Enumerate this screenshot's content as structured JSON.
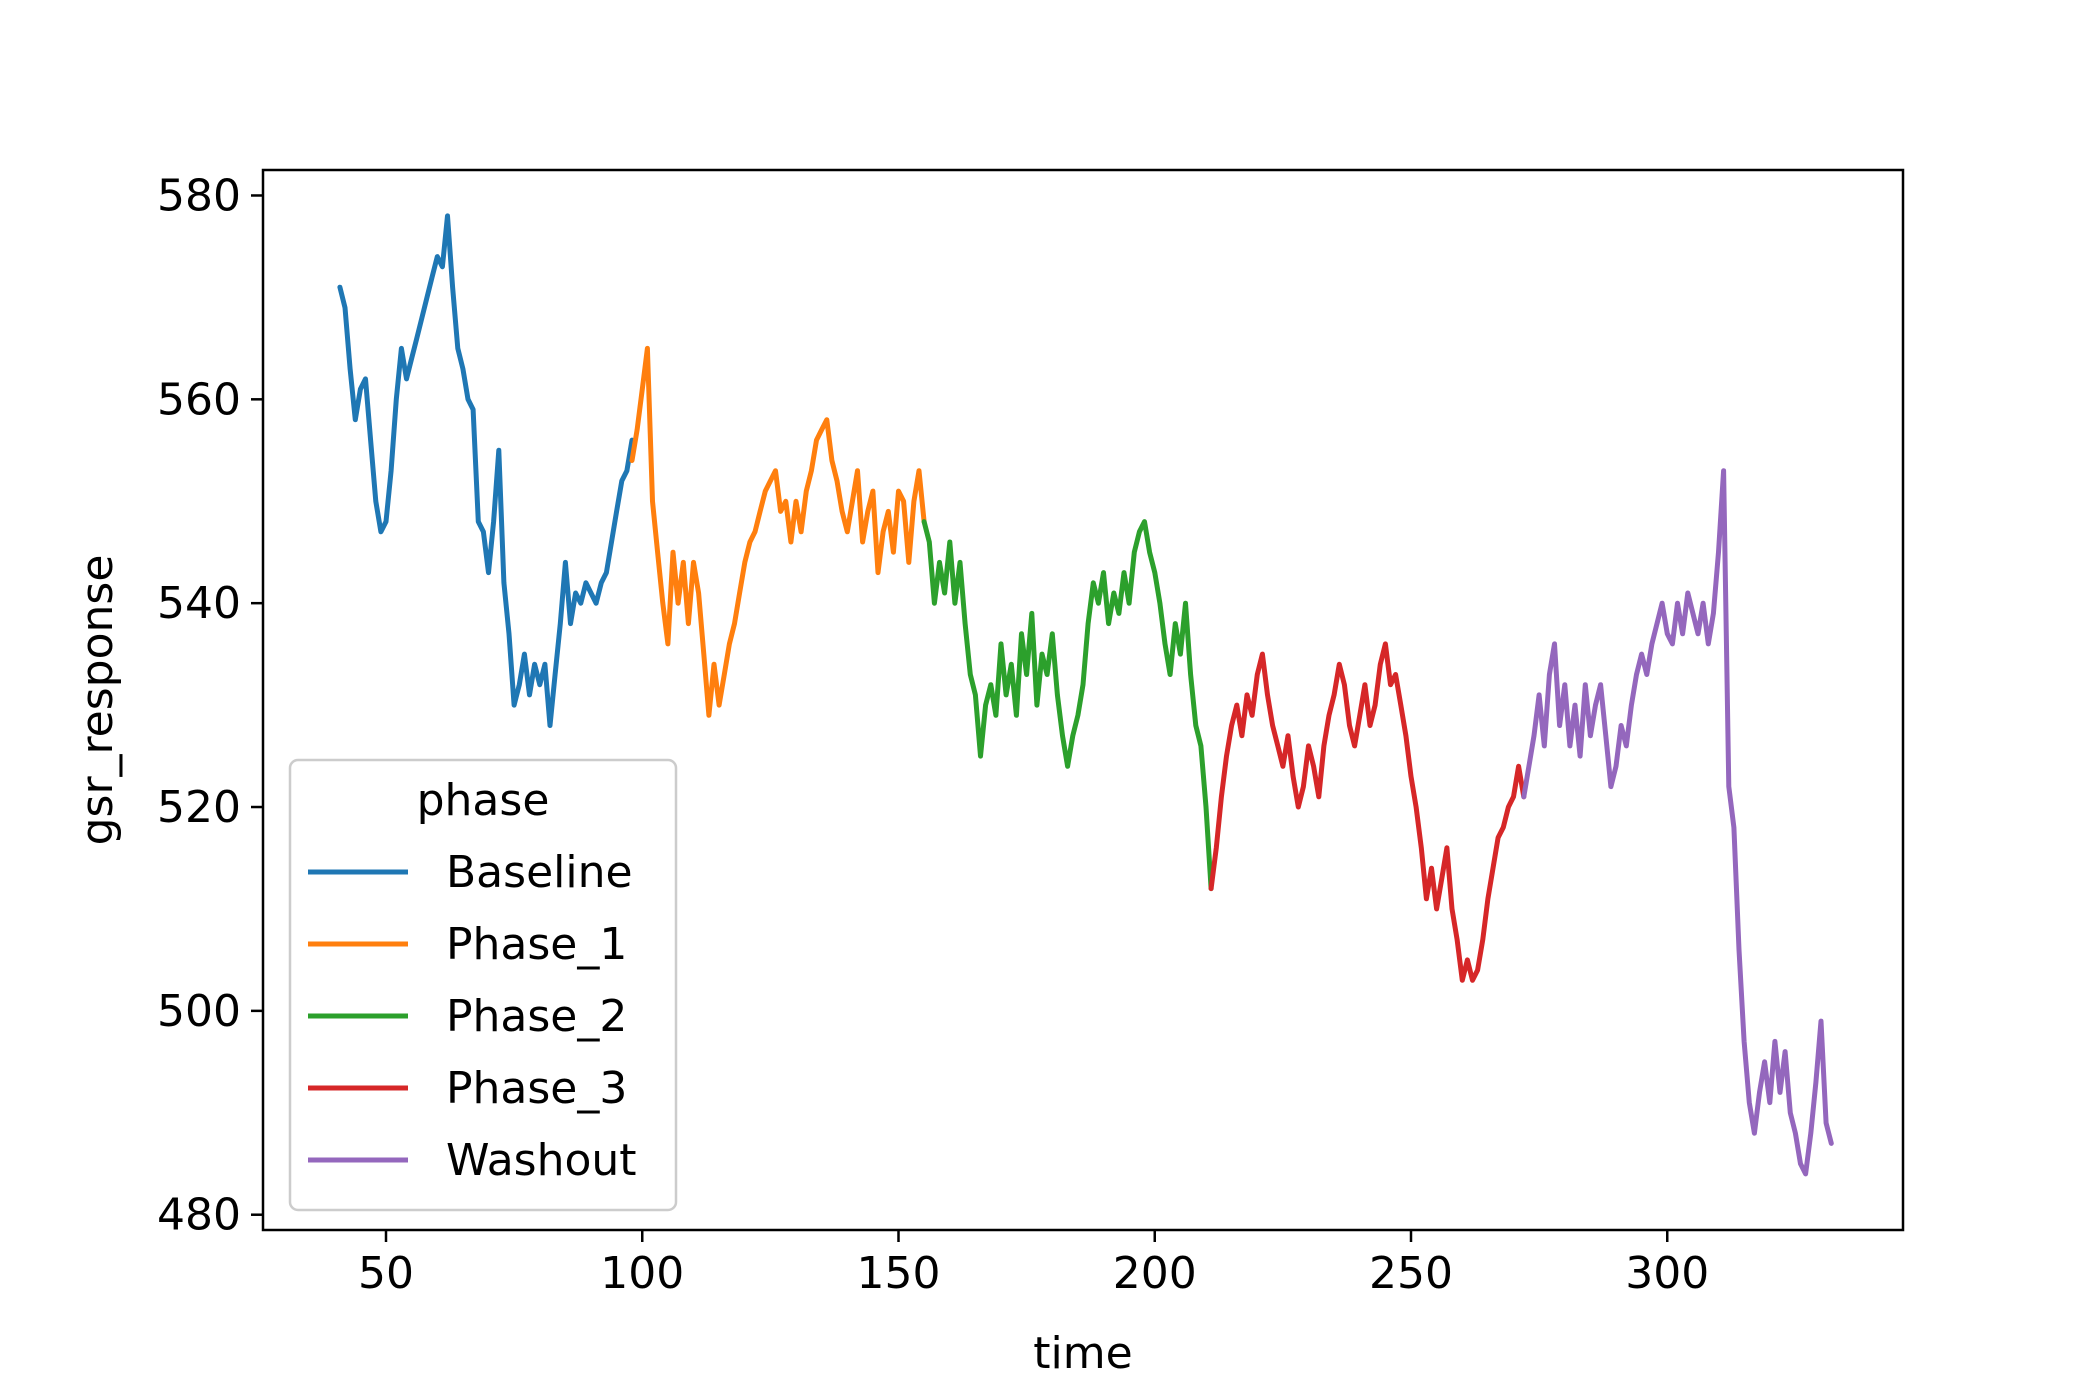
{
  "chart_data": {
    "type": "line",
    "title": "",
    "xlabel": "time",
    "ylabel": "gsr_response",
    "xlim": [
      26,
      346
    ],
    "ylim": [
      478.5,
      582.5
    ],
    "xticks": [
      50,
      100,
      150,
      200,
      250,
      300
    ],
    "yticks": [
      480,
      500,
      520,
      540,
      560,
      580
    ],
    "grid": false,
    "legend": {
      "title": "phase",
      "placement": "lower-left"
    },
    "series": [
      {
        "name": "Baseline",
        "color": "#1f77b4",
        "points": [
          [
            41,
            571
          ],
          [
            42,
            569
          ],
          [
            43,
            563
          ],
          [
            44,
            558
          ],
          [
            45,
            561
          ],
          [
            46,
            562
          ],
          [
            47,
            556
          ],
          [
            48,
            550
          ],
          [
            49,
            547
          ],
          [
            50,
            548
          ],
          [
            51,
            553
          ],
          [
            52,
            560
          ],
          [
            53,
            565
          ],
          [
            54,
            562
          ],
          [
            55,
            564
          ],
          [
            56,
            566
          ],
          [
            57,
            568
          ],
          [
            58,
            570
          ],
          [
            59,
            572
          ],
          [
            60,
            574
          ],
          [
            61,
            573
          ],
          [
            62,
            578
          ],
          [
            63,
            571
          ],
          [
            64,
            565
          ],
          [
            65,
            563
          ],
          [
            66,
            560
          ],
          [
            67,
            559
          ],
          [
            68,
            548
          ],
          [
            69,
            547
          ],
          [
            70,
            543
          ],
          [
            71,
            548
          ],
          [
            72,
            555
          ],
          [
            73,
            542
          ],
          [
            74,
            537
          ],
          [
            75,
            530
          ],
          [
            76,
            532
          ],
          [
            77,
            535
          ],
          [
            78,
            531
          ],
          [
            79,
            534
          ],
          [
            80,
            532
          ],
          [
            81,
            534
          ],
          [
            82,
            528
          ],
          [
            83,
            533
          ],
          [
            84,
            538
          ],
          [
            85,
            544
          ],
          [
            86,
            538
          ],
          [
            87,
            541
          ],
          [
            88,
            540
          ],
          [
            89,
            542
          ],
          [
            90,
            541
          ],
          [
            91,
            540
          ],
          [
            92,
            542
          ],
          [
            93,
            543
          ],
          [
            94,
            546
          ],
          [
            95,
            549
          ],
          [
            96,
            552
          ],
          [
            97,
            553
          ],
          [
            98,
            556
          ]
        ]
      },
      {
        "name": "Phase_1",
        "color": "#ff7f0e",
        "points": [
          [
            98,
            554
          ],
          [
            99,
            557
          ],
          [
            100,
            561
          ],
          [
            101,
            565
          ],
          [
            102,
            550
          ],
          [
            103,
            545
          ],
          [
            104,
            540
          ],
          [
            105,
            536
          ],
          [
            106,
            545
          ],
          [
            107,
            540
          ],
          [
            108,
            544
          ],
          [
            109,
            538
          ],
          [
            110,
            544
          ],
          [
            111,
            541
          ],
          [
            112,
            535
          ],
          [
            113,
            529
          ],
          [
            114,
            534
          ],
          [
            115,
            530
          ],
          [
            116,
            533
          ],
          [
            117,
            536
          ],
          [
            118,
            538
          ],
          [
            119,
            541
          ],
          [
            120,
            544
          ],
          [
            121,
            546
          ],
          [
            122,
            547
          ],
          [
            123,
            549
          ],
          [
            124,
            551
          ],
          [
            125,
            552
          ],
          [
            126,
            553
          ],
          [
            127,
            549
          ],
          [
            128,
            550
          ],
          [
            129,
            546
          ],
          [
            130,
            550
          ],
          [
            131,
            547
          ],
          [
            132,
            551
          ],
          [
            133,
            553
          ],
          [
            134,
            556
          ],
          [
            135,
            557
          ],
          [
            136,
            558
          ],
          [
            137,
            554
          ],
          [
            138,
            552
          ],
          [
            139,
            549
          ],
          [
            140,
            547
          ],
          [
            141,
            550
          ],
          [
            142,
            553
          ],
          [
            143,
            546
          ],
          [
            144,
            549
          ],
          [
            145,
            551
          ],
          [
            146,
            543
          ],
          [
            147,
            547
          ],
          [
            148,
            549
          ],
          [
            149,
            545
          ],
          [
            150,
            551
          ],
          [
            151,
            550
          ],
          [
            152,
            544
          ],
          [
            153,
            550
          ],
          [
            154,
            553
          ],
          [
            155,
            548
          ]
        ]
      },
      {
        "name": "Phase_2",
        "color": "#2ca02c",
        "points": [
          [
            155,
            548
          ],
          [
            156,
            546
          ],
          [
            157,
            540
          ],
          [
            158,
            544
          ],
          [
            159,
            541
          ],
          [
            160,
            546
          ],
          [
            161,
            540
          ],
          [
            162,
            544
          ],
          [
            163,
            538
          ],
          [
            164,
            533
          ],
          [
            165,
            531
          ],
          [
            166,
            525
          ],
          [
            167,
            530
          ],
          [
            168,
            532
          ],
          [
            169,
            529
          ],
          [
            170,
            536
          ],
          [
            171,
            531
          ],
          [
            172,
            534
          ],
          [
            173,
            529
          ],
          [
            174,
            537
          ],
          [
            175,
            533
          ],
          [
            176,
            539
          ],
          [
            177,
            530
          ],
          [
            178,
            535
          ],
          [
            179,
            533
          ],
          [
            180,
            537
          ],
          [
            181,
            531
          ],
          [
            182,
            527
          ],
          [
            183,
            524
          ],
          [
            184,
            527
          ],
          [
            185,
            529
          ],
          [
            186,
            532
          ],
          [
            187,
            538
          ],
          [
            188,
            542
          ],
          [
            189,
            540
          ],
          [
            190,
            543
          ],
          [
            191,
            538
          ],
          [
            192,
            541
          ],
          [
            193,
            539
          ],
          [
            194,
            543
          ],
          [
            195,
            540
          ],
          [
            196,
            545
          ],
          [
            197,
            547
          ],
          [
            198,
            548
          ],
          [
            199,
            545
          ],
          [
            200,
            543
          ],
          [
            201,
            540
          ],
          [
            202,
            536
          ],
          [
            203,
            533
          ],
          [
            204,
            538
          ],
          [
            205,
            535
          ],
          [
            206,
            540
          ],
          [
            207,
            533
          ],
          [
            208,
            528
          ],
          [
            209,
            526
          ],
          [
            210,
            520
          ],
          [
            211,
            512
          ]
        ]
      },
      {
        "name": "Phase_3",
        "color": "#d62728",
        "points": [
          [
            211,
            512
          ],
          [
            212,
            516
          ],
          [
            213,
            521
          ],
          [
            214,
            525
          ],
          [
            215,
            528
          ],
          [
            216,
            530
          ],
          [
            217,
            527
          ],
          [
            218,
            531
          ],
          [
            219,
            529
          ],
          [
            220,
            533
          ],
          [
            221,
            535
          ],
          [
            222,
            531
          ],
          [
            223,
            528
          ],
          [
            224,
            526
          ],
          [
            225,
            524
          ],
          [
            226,
            527
          ],
          [
            227,
            523
          ],
          [
            228,
            520
          ],
          [
            229,
            522
          ],
          [
            230,
            526
          ],
          [
            231,
            524
          ],
          [
            232,
            521
          ],
          [
            233,
            526
          ],
          [
            234,
            529
          ],
          [
            235,
            531
          ],
          [
            236,
            534
          ],
          [
            237,
            532
          ],
          [
            238,
            528
          ],
          [
            239,
            526
          ],
          [
            240,
            529
          ],
          [
            241,
            532
          ],
          [
            242,
            528
          ],
          [
            243,
            530
          ],
          [
            244,
            534
          ],
          [
            245,
            536
          ],
          [
            246,
            532
          ],
          [
            247,
            533
          ],
          [
            248,
            530
          ],
          [
            249,
            527
          ],
          [
            250,
            523
          ],
          [
            251,
            520
          ],
          [
            252,
            516
          ],
          [
            253,
            511
          ],
          [
            254,
            514
          ],
          [
            255,
            510
          ],
          [
            256,
            513
          ],
          [
            257,
            516
          ],
          [
            258,
            510
          ],
          [
            259,
            507
          ],
          [
            260,
            503
          ],
          [
            261,
            505
          ],
          [
            262,
            503
          ],
          [
            263,
            504
          ],
          [
            264,
            507
          ],
          [
            265,
            511
          ],
          [
            266,
            514
          ],
          [
            267,
            517
          ],
          [
            268,
            518
          ],
          [
            269,
            520
          ],
          [
            270,
            521
          ],
          [
            271,
            524
          ],
          [
            272,
            521
          ]
        ]
      },
      {
        "name": "Washout",
        "color": "#9467bd",
        "points": [
          [
            272,
            521
          ],
          [
            273,
            524
          ],
          [
            274,
            527
          ],
          [
            275,
            531
          ],
          [
            276,
            526
          ],
          [
            277,
            533
          ],
          [
            278,
            536
          ],
          [
            279,
            528
          ],
          [
            280,
            532
          ],
          [
            281,
            526
          ],
          [
            282,
            530
          ],
          [
            283,
            525
          ],
          [
            284,
            532
          ],
          [
            285,
            527
          ],
          [
            286,
            530
          ],
          [
            287,
            532
          ],
          [
            288,
            527
          ],
          [
            289,
            522
          ],
          [
            290,
            524
          ],
          [
            291,
            528
          ],
          [
            292,
            526
          ],
          [
            293,
            530
          ],
          [
            294,
            533
          ],
          [
            295,
            535
          ],
          [
            296,
            533
          ],
          [
            297,
            536
          ],
          [
            298,
            538
          ],
          [
            299,
            540
          ],
          [
            300,
            537
          ],
          [
            301,
            536
          ],
          [
            302,
            540
          ],
          [
            303,
            537
          ],
          [
            304,
            541
          ],
          [
            305,
            539
          ],
          [
            306,
            537
          ],
          [
            307,
            540
          ],
          [
            308,
            536
          ],
          [
            309,
            539
          ],
          [
            310,
            545
          ],
          [
            311,
            553
          ],
          [
            312,
            522
          ],
          [
            313,
            518
          ],
          [
            314,
            506
          ],
          [
            315,
            497
          ],
          [
            316,
            491
          ],
          [
            317,
            488
          ],
          [
            318,
            492
          ],
          [
            319,
            495
          ],
          [
            320,
            491
          ],
          [
            321,
            497
          ],
          [
            322,
            492
          ],
          [
            323,
            496
          ],
          [
            324,
            490
          ],
          [
            325,
            488
          ],
          [
            326,
            485
          ],
          [
            327,
            484
          ],
          [
            328,
            488
          ],
          [
            329,
            493
          ],
          [
            330,
            499
          ],
          [
            331,
            489
          ],
          [
            332,
            487
          ]
        ]
      }
    ]
  }
}
